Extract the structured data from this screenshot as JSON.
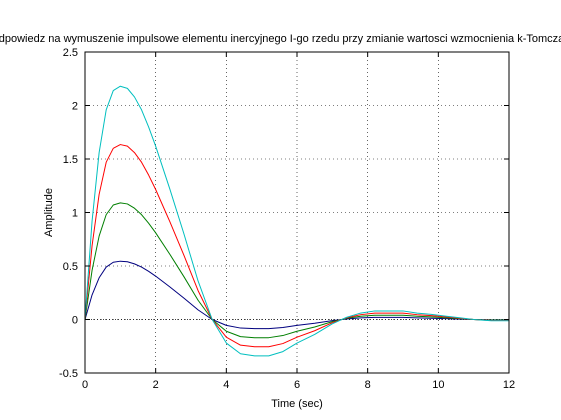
{
  "chart_data": {
    "type": "line",
    "title": "Odpowiedz na wymuszenie impulsowe elementu inercyjnego I-go rzedu przy zmianie wartosci wzmocnienia k-Tomczak",
    "xlabel": "Time (sec)",
    "ylabel": "Amplitude",
    "xlim": [
      0,
      12
    ],
    "ylim": [
      -0.5,
      2.5
    ],
    "xticks": [
      0,
      2,
      4,
      6,
      8,
      10,
      12
    ],
    "yticks": [
      -0.5,
      0,
      0.5,
      1,
      1.5,
      2,
      2.5
    ],
    "xtick_labels": [
      "0",
      "2",
      "4",
      "6",
      "8",
      "10",
      "12"
    ],
    "ytick_labels": [
      "-0.5",
      "0",
      "0.5",
      "1",
      "1.5",
      "2",
      "2.5"
    ],
    "grid": true,
    "series": [
      {
        "color": "#00007f",
        "x": [
          0,
          0.2,
          0.4,
          0.6,
          0.8,
          1.0,
          1.2,
          1.4,
          1.6,
          1.8,
          2.0,
          2.4,
          2.8,
          3.2,
          3.6,
          4.0,
          4.4,
          4.8,
          5.2,
          5.6,
          6.0,
          6.5,
          7.0,
          7.4,
          7.8,
          8.2,
          8.6,
          9.0,
          9.4,
          9.8,
          10.2,
          10.6,
          11.0,
          11.5,
          12.0
        ],
        "y": [
          0,
          0.23,
          0.39,
          0.49,
          0.535,
          0.545,
          0.54,
          0.52,
          0.49,
          0.45,
          0.405,
          0.305,
          0.2,
          0.09,
          0.0,
          -0.055,
          -0.08,
          -0.085,
          -0.085,
          -0.075,
          -0.055,
          -0.035,
          -0.01,
          0.005,
          0.015,
          0.02,
          0.02,
          0.02,
          0.015,
          0.012,
          0.008,
          0.004,
          0.0,
          -0.003,
          -0.003
        ]
      },
      {
        "color": "#007f00",
        "x": [
          0,
          0.2,
          0.4,
          0.6,
          0.8,
          1.0,
          1.2,
          1.4,
          1.6,
          1.8,
          2.0,
          2.4,
          2.8,
          3.2,
          3.6,
          4.0,
          4.4,
          4.8,
          5.2,
          5.6,
          6.0,
          6.5,
          7.0,
          7.4,
          7.8,
          8.2,
          8.6,
          9.0,
          9.4,
          9.8,
          10.2,
          10.6,
          11.0,
          11.5,
          12.0
        ],
        "y": [
          0,
          0.46,
          0.78,
          0.98,
          1.07,
          1.09,
          1.08,
          1.04,
          0.98,
          0.9,
          0.81,
          0.61,
          0.4,
          0.18,
          0.0,
          -0.11,
          -0.16,
          -0.17,
          -0.17,
          -0.15,
          -0.11,
          -0.07,
          -0.02,
          0.01,
          0.03,
          0.04,
          0.04,
          0.04,
          0.03,
          0.024,
          0.016,
          0.008,
          0.0,
          -0.006,
          -0.006
        ]
      },
      {
        "color": "#ff0000",
        "x": [
          0,
          0.2,
          0.4,
          0.6,
          0.8,
          1.0,
          1.2,
          1.4,
          1.6,
          1.8,
          2.0,
          2.4,
          2.8,
          3.2,
          3.6,
          4.0,
          4.4,
          4.8,
          5.2,
          5.6,
          6.0,
          6.5,
          7.0,
          7.4,
          7.8,
          8.2,
          8.6,
          9.0,
          9.4,
          9.8,
          10.2,
          10.6,
          11.0,
          11.5,
          12.0
        ],
        "y": [
          0,
          0.69,
          1.17,
          1.47,
          1.6,
          1.635,
          1.62,
          1.56,
          1.47,
          1.35,
          1.215,
          0.915,
          0.6,
          0.27,
          0.0,
          -0.165,
          -0.24,
          -0.255,
          -0.255,
          -0.225,
          -0.165,
          -0.105,
          -0.03,
          0.015,
          0.045,
          0.06,
          0.06,
          0.06,
          0.045,
          0.036,
          0.024,
          0.012,
          0.0,
          -0.009,
          -0.009
        ]
      },
      {
        "color": "#00bfbf",
        "x": [
          0,
          0.2,
          0.4,
          0.6,
          0.8,
          1.0,
          1.2,
          1.4,
          1.6,
          1.8,
          2.0,
          2.4,
          2.8,
          3.2,
          3.6,
          4.0,
          4.4,
          4.8,
          5.2,
          5.6,
          6.0,
          6.5,
          7.0,
          7.4,
          7.8,
          8.2,
          8.6,
          9.0,
          9.4,
          9.8,
          10.2,
          10.6,
          11.0,
          11.5,
          12.0
        ],
        "y": [
          0,
          0.92,
          1.56,
          1.96,
          2.14,
          2.18,
          2.16,
          2.08,
          1.96,
          1.8,
          1.62,
          1.22,
          0.8,
          0.36,
          0.0,
          -0.22,
          -0.32,
          -0.34,
          -0.34,
          -0.3,
          -0.22,
          -0.14,
          -0.04,
          0.02,
          0.06,
          0.08,
          0.08,
          0.08,
          0.06,
          0.048,
          0.032,
          0.016,
          0.0,
          -0.012,
          -0.012
        ]
      }
    ]
  }
}
